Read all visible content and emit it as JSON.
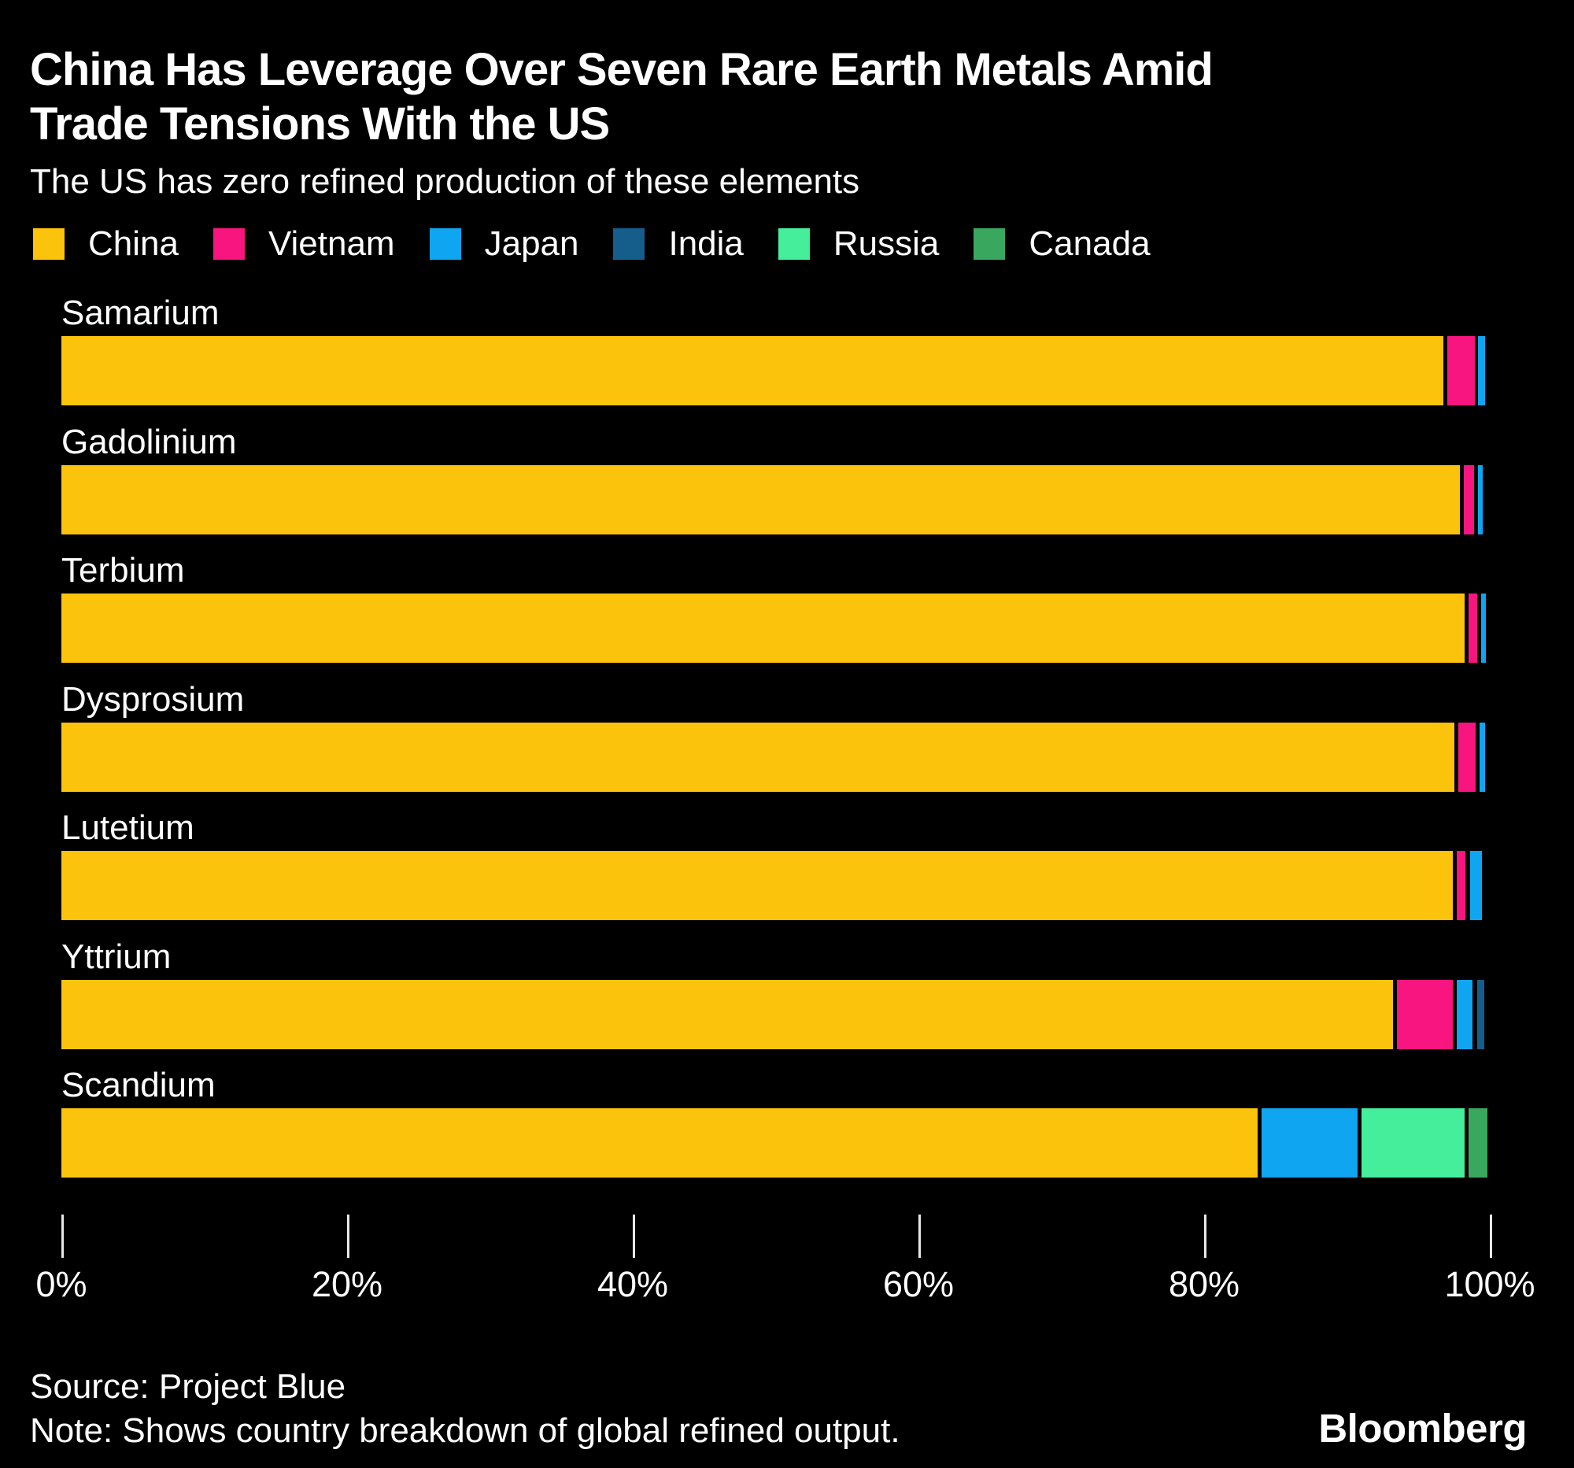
{
  "header": {
    "title_line1": "China Has Leverage Over Seven Rare Earth Metals Amid",
    "title_line2": "Trade Tensions With the US",
    "subtitle": "The US has zero refined production of these elements"
  },
  "chart_data": {
    "type": "bar",
    "orientation": "horizontal-stacked",
    "unit": "percent of global refined output",
    "title": "China Has Leverage Over Seven Rare Earth Metals Amid Trade Tensions With the US",
    "subtitle": "The US has zero refined production of these elements",
    "categories": [
      "Samarium",
      "Gadolinium",
      "Terbium",
      "Dysprosium",
      "Lutetium",
      "Yttrium",
      "Scandium"
    ],
    "series": [
      {
        "name": "China",
        "color": "#FBC30B",
        "values": [
          97.0,
          98.2,
          98.5,
          97.8,
          97.7,
          93.5,
          84.0
        ]
      },
      {
        "name": "Vietnam",
        "color": "#F9157F",
        "values": [
          2.2,
          1.0,
          0.9,
          1.5,
          0.9,
          4.2,
          0
        ]
      },
      {
        "name": "Japan",
        "color": "#0FA5F0",
        "values": [
          0.5,
          0.35,
          0.35,
          0.4,
          0.8,
          1.4,
          7.0
        ]
      },
      {
        "name": "India",
        "color": "#155E8C",
        "values": [
          0,
          0,
          0,
          0,
          0,
          0.5,
          0
        ]
      },
      {
        "name": "Russia",
        "color": "#44EE9A",
        "values": [
          0,
          0,
          0,
          0,
          0,
          0,
          7.5
        ]
      },
      {
        "name": "Canada",
        "color": "#39A85E",
        "values": [
          0,
          0,
          0,
          0,
          0,
          0,
          1.3
        ]
      }
    ],
    "x_axis": {
      "min": 0,
      "max": 100,
      "tick_labels": [
        "0%",
        "20%",
        "40%",
        "60%",
        "80%",
        "100%"
      ],
      "grid": false
    },
    "legend_position": "top"
  },
  "footer": {
    "source": "Source: Project Blue",
    "note": "Note: Shows country breakdown of global refined output.",
    "brand": "Bloomberg"
  }
}
